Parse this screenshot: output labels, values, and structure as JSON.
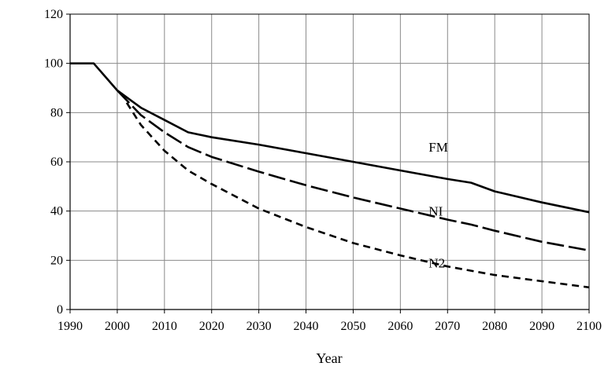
{
  "chart_data": {
    "type": "line",
    "xlabel": "Year",
    "ylabel": "",
    "xlim": [
      1990,
      2100
    ],
    "ylim": [
      0,
      120
    ],
    "xticks": [
      1990,
      2000,
      2010,
      2020,
      2030,
      2040,
      2050,
      2060,
      2070,
      2080,
      2090,
      2100
    ],
    "yticks": [
      0,
      20,
      40,
      60,
      80,
      100,
      120
    ],
    "grid": true,
    "legend": "none",
    "series": [
      {
        "name": "FM",
        "style": "solid",
        "x": [
          1990,
          1995,
          2000,
          2005,
          2010,
          2015,
          2020,
          2030,
          2040,
          2050,
          2060,
          2070,
          2075,
          2080,
          2090,
          2100
        ],
        "y": [
          100,
          100,
          89,
          82,
          77,
          72,
          70,
          67,
          63.5,
          60,
          56.5,
          53,
          51.5,
          48,
          43.5,
          39.5
        ]
      },
      {
        "name": "NI",
        "style": "longdash",
        "x": [
          2000,
          2005,
          2010,
          2015,
          2020,
          2030,
          2040,
          2050,
          2060,
          2070,
          2075,
          2080,
          2090,
          2100
        ],
        "y": [
          89,
          79,
          72,
          66,
          62,
          56,
          50.5,
          45.5,
          41,
          36.5,
          34.5,
          32,
          27.5,
          24
        ]
      },
      {
        "name": "N2",
        "style": "shortdash",
        "x": [
          2002,
          2005,
          2010,
          2015,
          2020,
          2030,
          2040,
          2050,
          2060,
          2070,
          2080,
          2090,
          2100
        ],
        "y": [
          84,
          75,
          64.5,
          56.5,
          51,
          41,
          33.5,
          27,
          22,
          17.5,
          14,
          11.5,
          9
        ]
      }
    ],
    "annotations": [
      {
        "text": "FM",
        "x": 2066,
        "y": 66
      },
      {
        "text": "NI",
        "x": 2066,
        "y": 40
      },
      {
        "text": "N2",
        "x": 2066,
        "y": 19
      }
    ]
  }
}
